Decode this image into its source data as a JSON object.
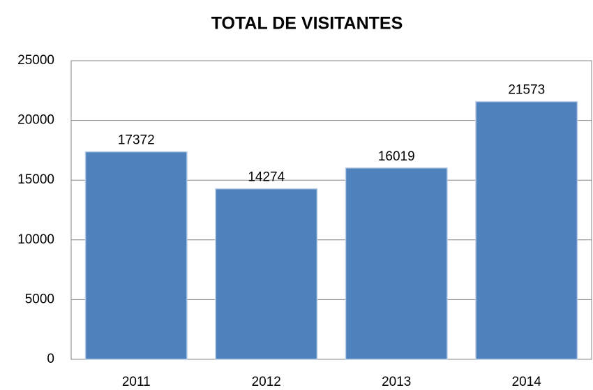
{
  "chart_data": {
    "type": "bar",
    "title": "TOTAL DE VISITANTES",
    "categories": [
      "2011",
      "2012",
      "2013",
      "2014"
    ],
    "values": [
      17372,
      14274,
      16019,
      21573
    ],
    "color": "#4f81bd",
    "ylim": [
      0,
      25000
    ],
    "yticks": [
      0,
      5000,
      10000,
      15000,
      20000,
      25000
    ],
    "grid": true
  }
}
